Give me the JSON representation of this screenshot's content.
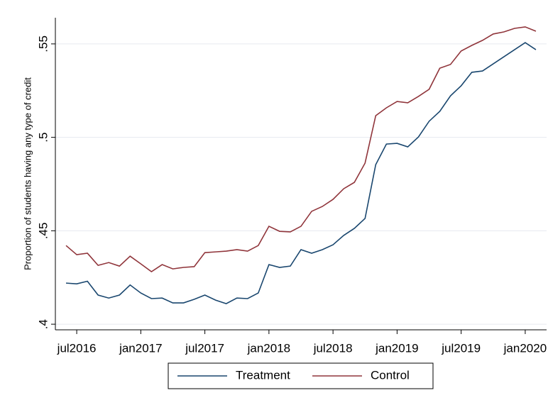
{
  "chart_data": {
    "type": "line",
    "y_label": "Proportion of students having any type of credit",
    "x": [
      "2016-06",
      "2016-07",
      "2016-08",
      "2016-09",
      "2016-10",
      "2016-11",
      "2016-12",
      "2017-01",
      "2017-02",
      "2017-03",
      "2017-04",
      "2017-05",
      "2017-06",
      "2017-07",
      "2017-08",
      "2017-09",
      "2017-10",
      "2017-11",
      "2017-12",
      "2018-01",
      "2018-02",
      "2018-03",
      "2018-04",
      "2018-05",
      "2018-06",
      "2018-07",
      "2018-08",
      "2018-09",
      "2018-10",
      "2018-11",
      "2018-12",
      "2019-01",
      "2019-02",
      "2019-03",
      "2019-04",
      "2019-05",
      "2019-06",
      "2019-07",
      "2019-08",
      "2019-09",
      "2019-10",
      "2019-11",
      "2019-12",
      "2020-01",
      "2020-02"
    ],
    "series": [
      {
        "name": "Treatment",
        "color": "#1a476f",
        "values": [
          0.422,
          0.4216,
          0.423,
          0.4156,
          0.414,
          0.4156,
          0.421,
          0.4167,
          0.4137,
          0.414,
          0.4114,
          0.4114,
          0.4133,
          0.4156,
          0.4129,
          0.411,
          0.414,
          0.4137,
          0.4167,
          0.4319,
          0.4304,
          0.4311,
          0.4399,
          0.438,
          0.4399,
          0.4425,
          0.4475,
          0.4513,
          0.4566,
          0.4854,
          0.4964,
          0.4968,
          0.4949,
          0.5002,
          0.5086,
          0.5139,
          0.5222,
          0.5276,
          0.5348,
          0.5355,
          0.5393,
          0.5431,
          0.5469,
          0.5507,
          0.5469
        ]
      },
      {
        "name": "Control",
        "color": "#90353b",
        "values": [
          0.4421,
          0.4372,
          0.438,
          0.4315,
          0.433,
          0.4311,
          0.4364,
          0.4323,
          0.4281,
          0.4319,
          0.4296,
          0.4304,
          0.4308,
          0.4383,
          0.4387,
          0.4391,
          0.4399,
          0.4391,
          0.4421,
          0.4524,
          0.4497,
          0.4494,
          0.4524,
          0.4604,
          0.463,
          0.4668,
          0.4725,
          0.4759,
          0.4862,
          0.5116,
          0.5158,
          0.5192,
          0.5185,
          0.5219,
          0.5257,
          0.537,
          0.539,
          0.5462,
          0.5492,
          0.5519,
          0.5553,
          0.5564,
          0.5583,
          0.5591,
          0.5568
        ]
      }
    ],
    "xlim": [
      "2016-05",
      "2020-03"
    ],
    "xticks": [
      {
        "value": "2016-07",
        "label": "jul2016"
      },
      {
        "value": "2017-01",
        "label": "jan2017"
      },
      {
        "value": "2017-07",
        "label": "jul2017"
      },
      {
        "value": "2018-01",
        "label": "jan2018"
      },
      {
        "value": "2018-07",
        "label": "jul2018"
      },
      {
        "value": "2019-01",
        "label": "jan2019"
      },
      {
        "value": "2019-07",
        "label": "jul2019"
      },
      {
        "value": "2020-01",
        "label": "jan2020"
      }
    ],
    "ylim": [
      0.397,
      0.564
    ],
    "yticks": [
      {
        "value": 0.4,
        "label": ".4"
      },
      {
        "value": 0.45,
        "label": ".45"
      },
      {
        "value": 0.5,
        "label": ".5"
      },
      {
        "value": 0.55,
        "label": ".55"
      }
    ],
    "grid": true,
    "legend": "bottom"
  }
}
